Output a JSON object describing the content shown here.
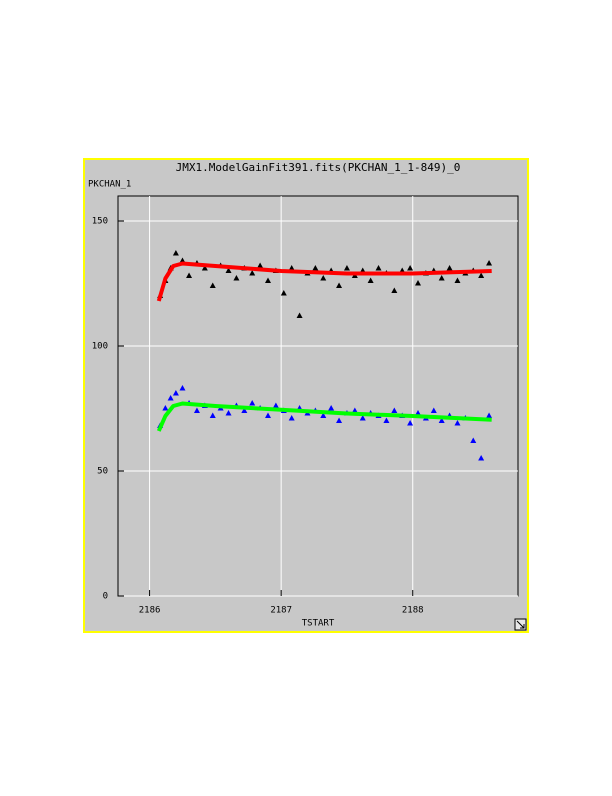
{
  "chart_data": {
    "type": "scatter",
    "title": "JMX1.ModelGainFit391.fits(PKCHAN_1_1-849)_0",
    "y_label": "PKCHAN_1",
    "x_label": "TSTART",
    "xlim": [
      2185.76,
      2188.8
    ],
    "xticks": [
      2186,
      2187,
      2188
    ],
    "ylim": [
      0,
      160
    ],
    "yticks": [
      0,
      50,
      100,
      150
    ],
    "grid": true,
    "series": [
      {
        "style": "triangle",
        "color": "#000000",
        "x": [
          2186.08,
          2186.12,
          2186.16,
          2186.2,
          2186.25,
          2186.3,
          2186.36,
          2186.42,
          2186.48,
          2186.54,
          2186.6,
          2186.66,
          2186.72,
          2186.78,
          2186.84,
          2186.9,
          2186.96,
          2187.02,
          2187.08,
          2187.14,
          2187.2,
          2187.26,
          2187.32,
          2187.38,
          2187.44,
          2187.5,
          2187.56,
          2187.62,
          2187.68,
          2187.74,
          2187.8,
          2187.86,
          2187.92,
          2187.98,
          2188.04,
          2188.1,
          2188.16,
          2188.22,
          2188.28,
          2188.34,
          2188.4,
          2188.46,
          2188.52,
          2188.58
        ],
        "values": [
          120,
          126,
          131,
          137,
          134,
          128,
          133,
          131,
          124,
          132,
          130,
          127,
          131,
          129,
          132,
          126,
          130,
          121,
          131,
          112,
          129,
          131,
          127,
          130,
          124,
          131,
          128,
          130,
          126,
          131,
          129,
          122,
          130,
          131,
          125,
          129,
          130,
          127,
          131,
          126,
          129,
          130,
          128,
          133
        ]
      },
      {
        "style": "triangle",
        "color": "#0000ff",
        "x": [
          2186.08,
          2186.12,
          2186.16,
          2186.2,
          2186.25,
          2186.3,
          2186.36,
          2186.42,
          2186.48,
          2186.54,
          2186.6,
          2186.66,
          2186.72,
          2186.78,
          2186.84,
          2186.9,
          2186.96,
          2187.02,
          2187.08,
          2187.14,
          2187.2,
          2187.26,
          2187.32,
          2187.38,
          2187.44,
          2187.5,
          2187.56,
          2187.62,
          2187.68,
          2187.74,
          2187.8,
          2187.86,
          2187.92,
          2187.98,
          2188.04,
          2188.1,
          2188.16,
          2188.22,
          2188.28,
          2188.34,
          2188.4,
          2188.46,
          2188.52,
          2188.58
        ],
        "values": [
          68,
          75,
          79,
          81,
          83,
          77,
          74,
          76,
          72,
          75,
          73,
          76,
          74,
          77,
          75,
          72,
          76,
          74,
          71,
          75,
          73,
          74,
          72,
          75,
          70,
          73,
          74,
          71,
          73,
          72,
          70,
          74,
          72,
          69,
          73,
          71,
          74,
          70,
          72,
          69,
          71,
          62,
          55,
          72
        ]
      },
      {
        "style": "line",
        "color": "#ff0000",
        "x": [
          2186.07,
          2186.12,
          2186.18,
          2186.25,
          2186.5,
          2187,
          2187.5,
          2188,
          2188.6
        ],
        "values": [
          118,
          127,
          132,
          133,
          132,
          130,
          129,
          129,
          130
        ]
      },
      {
        "style": "line",
        "color": "#00ff00",
        "x": [
          2186.07,
          2186.12,
          2186.18,
          2186.25,
          2186.5,
          2187,
          2187.5,
          2188,
          2188.6
        ],
        "values": [
          66,
          72,
          76,
          77,
          76,
          74.5,
          73,
          72,
          70.5
        ]
      }
    ]
  }
}
